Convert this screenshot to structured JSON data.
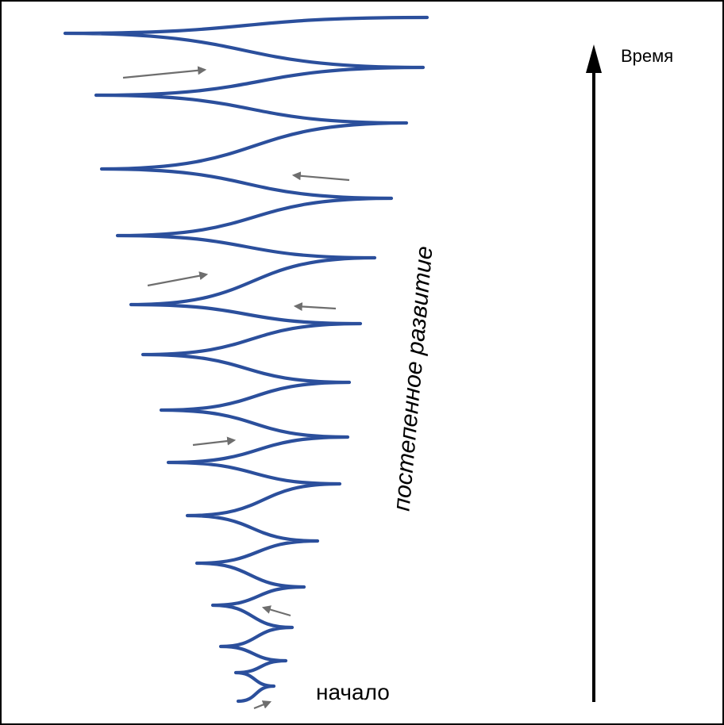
{
  "diagram": {
    "labels": {
      "time": "Время",
      "start": "начало",
      "development": "постепенное развитие"
    },
    "colors": {
      "spiral": "#2b4f9c",
      "small_arrows": "#6e6e6e",
      "time_axis": "#000000",
      "text": "#000000",
      "border": "#000000"
    }
  }
}
